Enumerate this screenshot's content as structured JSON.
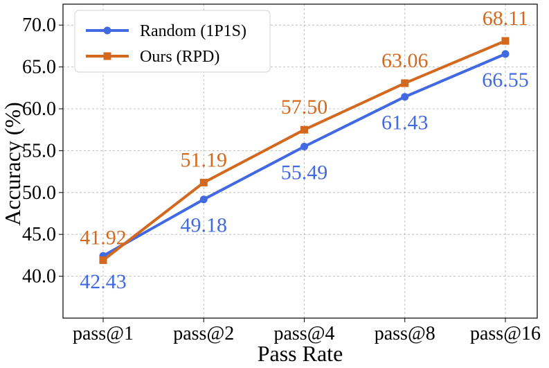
{
  "chart_data": {
    "type": "line",
    "categories": [
      "pass@1",
      "pass@2",
      "pass@4",
      "pass@8",
      "pass@16"
    ],
    "series": [
      {
        "name": "Random (1P1S)",
        "values": [
          42.43,
          49.18,
          55.49,
          61.43,
          66.55
        ],
        "labels": [
          "42.43",
          "49.18",
          "55.49",
          "61.43",
          "66.55"
        ],
        "color": "#4169e1",
        "marker": "circle",
        "label_position": "below"
      },
      {
        "name": "Ours (RPD)",
        "values": [
          41.92,
          51.19,
          57.5,
          63.06,
          68.11
        ],
        "labels": [
          "41.92",
          "51.19",
          "57.50",
          "63.06",
          "68.11"
        ],
        "color": "#d2691e",
        "marker": "square",
        "label_position": "above"
      }
    ],
    "xlabel": "Pass Rate",
    "ylabel": "Accuracy (%)",
    "ylim": [
      35.0,
      72.5
    ],
    "yticks": [
      40.0,
      45.0,
      50.0,
      55.0,
      60.0,
      65.0,
      70.0
    ],
    "ytick_labels": [
      "40.0",
      "45.0",
      "50.0",
      "55.0",
      "60.0",
      "65.0",
      "70.0"
    ],
    "grid": true,
    "legend_position": "top-left"
  }
}
